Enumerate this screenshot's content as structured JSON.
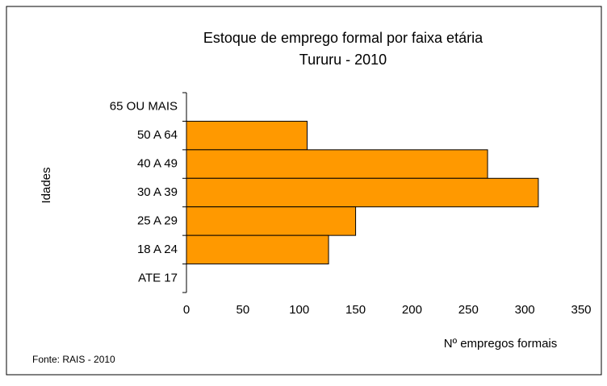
{
  "chart_data": {
    "type": "hbar",
    "title": "Estoque de emprego formal por faixa etária",
    "subtitle": "Tururu - 2010",
    "x_label": "Nº empregos formais",
    "y_label": "Idades",
    "source": "Fonte: RAIS - 2010",
    "categories": [
      "65 OU MAIS",
      "50 A 64",
      "40 A 49",
      "30 A 39",
      "25 A 29",
      "18 A 24",
      "ATE 17"
    ],
    "values": [
      0,
      107,
      267,
      312,
      150,
      126,
      0
    ],
    "color": "#ff9900",
    "xlim": [
      0,
      350
    ],
    "xticks": [
      0,
      50,
      100,
      150,
      200,
      250,
      300,
      350
    ],
    "grid": false
  }
}
